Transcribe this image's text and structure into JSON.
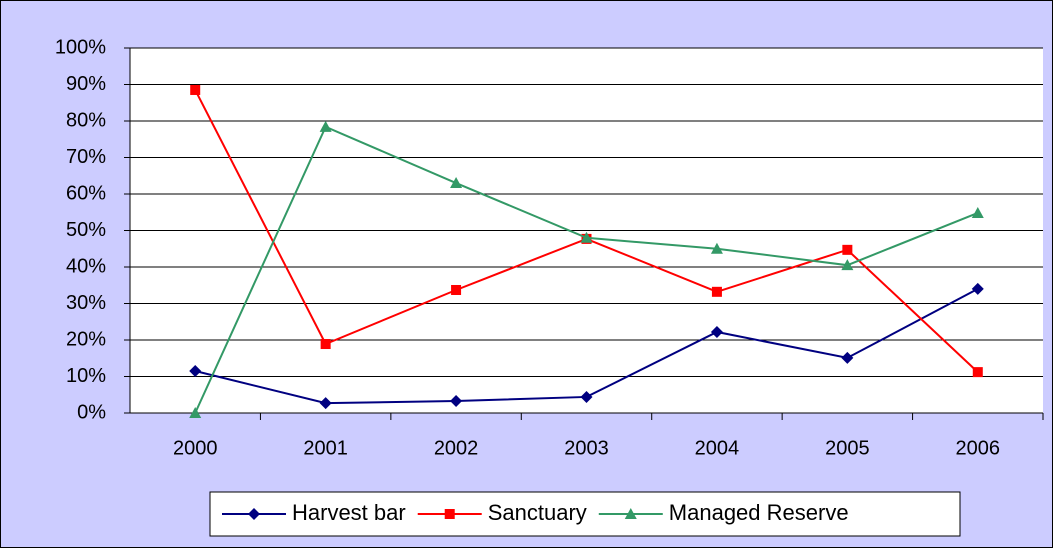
{
  "chart_data": {
    "type": "line",
    "categories": [
      "2000",
      "2001",
      "2002",
      "2003",
      "2004",
      "2005",
      "2006"
    ],
    "series": [
      {
        "name": "Harvest bar",
        "color": "#000080",
        "marker": "diamond",
        "values": [
          11.5,
          2.7,
          3.3,
          4.4,
          22.2,
          15.1,
          34
        ]
      },
      {
        "name": "Sanctuary",
        "color": "#ff0000",
        "marker": "square",
        "values": [
          88.5,
          18.9,
          33.7,
          47.7,
          33.2,
          44.7,
          11.2
        ]
      },
      {
        "name": "Managed Reserve",
        "color": "#339966",
        "marker": "triangle",
        "values": [
          0,
          78.4,
          63,
          48,
          45,
          40.5,
          54.8
        ]
      }
    ],
    "ylim": [
      0,
      100
    ],
    "yticks": [
      {
        "value": 0,
        "label": "0%"
      },
      {
        "value": 10,
        "label": "10%"
      },
      {
        "value": 20,
        "label": "20%"
      },
      {
        "value": 30,
        "label": "30%"
      },
      {
        "value": 40,
        "label": "40%"
      },
      {
        "value": 50,
        "label": "50%"
      },
      {
        "value": 60,
        "label": "60%"
      },
      {
        "value": 70,
        "label": "70%"
      },
      {
        "value": 80,
        "label": "80%"
      },
      {
        "value": 90,
        "label": "90%"
      },
      {
        "value": 100,
        "label": "100%"
      }
    ],
    "grid": true,
    "legend": "bottom"
  }
}
